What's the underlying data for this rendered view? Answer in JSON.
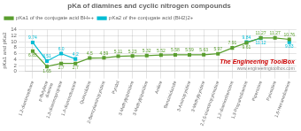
{
  "chart_data": {
    "type": "line",
    "title": "pKa of diamines and cyclic nitrogen compounds",
    "ylabel": "pKa1 and pKa2",
    "categories": [
      "1,2-diaminoethane",
      "p-Butylene\ndiamine",
      "1,3-diaminopropane",
      "1,4-diaminobutane",
      "Quinuclidine",
      "2-Benzylaminopyridine",
      "Pyridol",
      "3-Methylpiperidine",
      "3-Methylpiperidine",
      "Aniline",
      "Benzimidazole",
      "3-Aminopyridine",
      "3-Methylpyridine",
      "2,4,5-triaminopyrimidine",
      "1,2-diaminobenzene",
      "1,3-Propanediamine",
      "Piperazine",
      "Pyrimidine",
      "1,6-Hexanediamine"
    ],
    "series": [
      {
        "name": "pKa1 of the conjugate acid BH++",
        "color": "#5a9e2f",
        "marker": "square",
        "values": [
          6.85,
          1.65,
          2.7,
          2.7,
          4.5,
          4.59,
          5.11,
          5.23,
          5.32,
          5.52,
          5.58,
          5.59,
          5.63,
          5.97,
          7.91,
          9.61,
          11.27,
          11.27,
          10.76
        ],
        "value_labels": [
          "6.85",
          "1.65",
          "2.7",
          "2.7",
          "4.5",
          "4.59",
          "5.11",
          "5.23",
          "5.32",
          "5.52",
          "5.58",
          "5.59",
          "5.63",
          "5.97",
          "7.91",
          "9.61",
          "11.27",
          "11.27",
          "10.76"
        ]
      },
      {
        "name": "pKa2 of the conjugate acid (BH2)2+",
        "color": "#00bcd4",
        "marker": "square",
        "values": [
          9.74,
          3.51,
          6.0,
          4.2,
          null,
          null,
          null,
          null,
          null,
          null,
          null,
          null,
          null,
          null,
          null,
          9.84,
          11.12,
          null,
          9.83
        ],
        "value_labels": [
          "9.74",
          "3.51",
          "6.0",
          "4.2",
          null,
          null,
          null,
          null,
          null,
          null,
          null,
          null,
          null,
          null,
          null,
          "9.84",
          "11.12",
          null,
          "9.83"
        ]
      }
    ],
    "ylim": [
      0,
      14
    ],
    "yticks": [
      0,
      2,
      4,
      6,
      8,
      10,
      12,
      14
    ],
    "grid": true,
    "legend": "upper left",
    "data_labels": true,
    "annotations": [
      {
        "text": "The Engineering ToolBox",
        "color": "#cc0000"
      },
      {
        "text": "www.engineeringtoolbox.com",
        "color": "#888888"
      }
    ]
  }
}
